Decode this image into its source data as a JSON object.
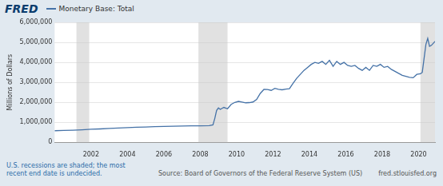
{
  "chart_data": {
    "type": "line",
    "logo": "FRED",
    "y_label": "Millions of Dollars",
    "notes": "U.S. recessions are shaded; the most recent end date is undecided.",
    "source": "Source: Board of Governors of the Federal Reserve System (US)",
    "url": "fred.stlouisfed.org",
    "x": [
      2000.0,
      2000.5,
      2001.0,
      2001.5,
      2002.0,
      2002.5,
      2003.0,
      2003.5,
      2004.0,
      2004.5,
      2005.0,
      2005.5,
      2006.0,
      2006.5,
      2007.0,
      2007.5,
      2008.0,
      2008.5,
      2008.7,
      2008.8,
      2008.9,
      2009.0,
      2009.1,
      2009.3,
      2009.5,
      2009.7,
      2009.9,
      2010.1,
      2010.3,
      2010.5,
      2010.7,
      2010.9,
      2011.1,
      2011.3,
      2011.5,
      2011.7,
      2011.9,
      2012.1,
      2012.3,
      2012.5,
      2012.7,
      2012.9,
      2013.1,
      2013.3,
      2013.5,
      2013.7,
      2013.9,
      2014.1,
      2014.3,
      2014.5,
      2014.7,
      2014.9,
      2015.1,
      2015.3,
      2015.5,
      2015.7,
      2015.9,
      2016.1,
      2016.3,
      2016.5,
      2016.7,
      2016.9,
      2017.1,
      2017.3,
      2017.5,
      2017.7,
      2017.9,
      2018.1,
      2018.3,
      2018.5,
      2018.7,
      2018.9,
      2019.1,
      2019.3,
      2019.5,
      2019.7,
      2019.9,
      2020.1,
      2020.2,
      2020.3,
      2020.4,
      2020.5,
      2020.6,
      2020.7,
      2020.8,
      2020.9
    ],
    "series": [
      {
        "name": "Monetary Base: Total",
        "color": "#4572a7",
        "values": [
          585000,
          600000,
          610000,
          630000,
          660000,
          675000,
          700000,
          720000,
          740000,
          755000,
          770000,
          785000,
          800000,
          810000,
          820000,
          825000,
          830000,
          840000,
          880000,
          1200000,
          1600000,
          1720000,
          1650000,
          1750000,
          1680000,
          1900000,
          2000000,
          2050000,
          2020000,
          1980000,
          1990000,
          2020000,
          2150000,
          2450000,
          2650000,
          2640000,
          2600000,
          2700000,
          2650000,
          2630000,
          2660000,
          2680000,
          2950000,
          3200000,
          3400000,
          3600000,
          3750000,
          3900000,
          4000000,
          3950000,
          4050000,
          3900000,
          4100000,
          3800000,
          4050000,
          3900000,
          4000000,
          3850000,
          3800000,
          3850000,
          3700000,
          3600000,
          3750000,
          3600000,
          3850000,
          3800000,
          3900000,
          3750000,
          3800000,
          3650000,
          3550000,
          3450000,
          3350000,
          3300000,
          3250000,
          3230000,
          3400000,
          3430000,
          3500000,
          4200000,
          4900000,
          5200000,
          4800000,
          4850000,
          4950000,
          5050000
        ]
      }
    ],
    "recessions": [
      [
        2001.2,
        2001.9
      ],
      [
        2007.9,
        2009.5
      ],
      [
        2020.1,
        2020.9
      ]
    ],
    "xlim": [
      2000,
      2020.9
    ],
    "xticks": [
      2002,
      2004,
      2006,
      2008,
      2010,
      2012,
      2014,
      2016,
      2018,
      2020
    ],
    "ylim": [
      0,
      6000000
    ],
    "yticks": [
      0,
      {
        "value": 1000000,
        "label": "1,000,000"
      },
      {
        "value": 2000000,
        "label": "2,000,000"
      },
      {
        "value": 3000000,
        "label": "3,000,000"
      },
      {
        "value": 4000000,
        "label": "4,000,000"
      },
      {
        "value": 5000000,
        "label": "5,000,000"
      },
      {
        "value": 6000000,
        "label": "6,000,000"
      }
    ],
    "grid": "y"
  }
}
